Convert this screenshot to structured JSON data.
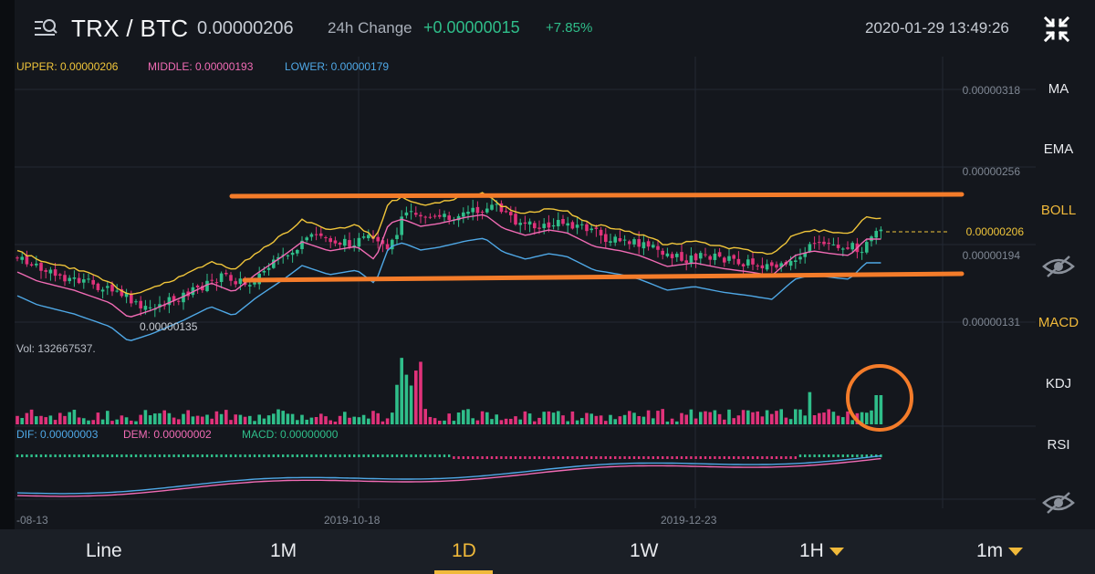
{
  "header": {
    "pair": "TRX / BTC",
    "price": "0.00000206",
    "change_label": "24h Change",
    "change_abs": "+0.00000015",
    "change_pct": "+7.85%",
    "datetime": "2020-01-29 13:49:26"
  },
  "indicators": {
    "upper": "UPPER: 0.00000206",
    "middle": "MIDDLE: 0.00000193",
    "lower": "LOWER: 0.00000179",
    "vol": "Vol: 132667537.",
    "dif": "DIF: 0.00000003",
    "dem": "DEM: 0.00000002",
    "macd": "MACD: 0.00000000"
  },
  "price_axis": {
    "labels": [
      "0.00000318",
      "0.00000256",
      "0.00000206",
      "0.00000194",
      "0.00000131"
    ],
    "current": "0.00000206",
    "low_marker": "0.00000135"
  },
  "date_axis": [
    "-08-13",
    "2019-10-18",
    "2019-12-23"
  ],
  "toolbar": {
    "items": [
      "MA",
      "EMA",
      "BOLL",
      "MACD",
      "KDJ",
      "RSI"
    ],
    "active_main": "BOLL",
    "active_sub": "MACD"
  },
  "timeframes": [
    "Line",
    "1M",
    "1D",
    "1W",
    "1H",
    "1m"
  ],
  "active_timeframe": "1D",
  "colors": {
    "up": "#2fbe8a",
    "down": "#e0327a",
    "upper_band": "#f0c53a",
    "middle_band": "#f06bb4",
    "lower_band": "#4fa8e6",
    "annotation": "#f47c2a",
    "accent": "#f0b93a"
  }
}
